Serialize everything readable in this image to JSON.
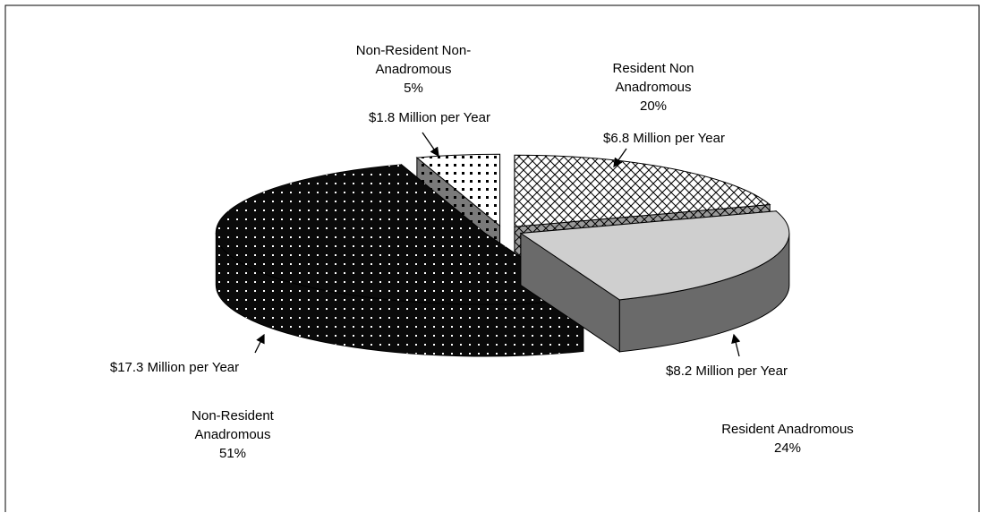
{
  "chart_data": {
    "type": "pie3d",
    "categories": [
      "Resident Non Anadromous",
      "Resident Anadromous",
      "Non-Resident Anadromous",
      "Non-Resident Non-Anadromous"
    ],
    "values": [
      20,
      24,
      51,
      5
    ],
    "value_labels": [
      "20%",
      "24%",
      "51%",
      "5%"
    ],
    "annotations": [
      "$6.8 Million per Year",
      "$8.2 Million per Year",
      "$17.3 Million per Year",
      "$1.8 Million per Year"
    ],
    "colors": [
      "#ffffff",
      "#cfcfcf",
      "#0a0a0a",
      "#ffffff"
    ],
    "side_colors": [
      "#9a9a9a",
      "#6a6a6a",
      "#0a0a0a",
      "#7a7a7a"
    ],
    "patterns": [
      "weave",
      "none",
      "dots-white",
      "dots-black"
    ]
  }
}
